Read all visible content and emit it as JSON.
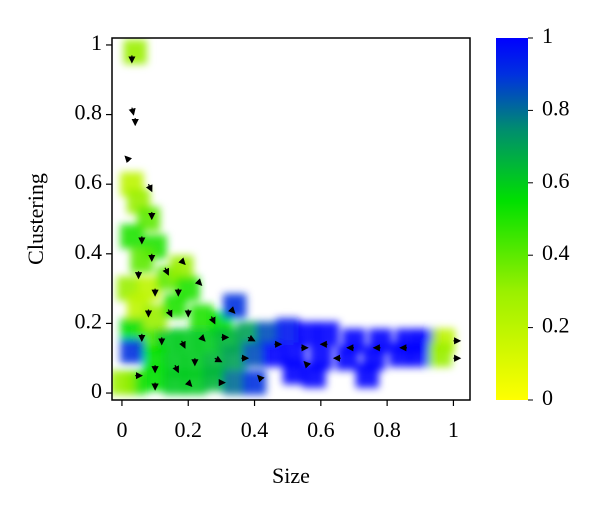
{
  "chart_data": {
    "type": "heatmap-quiver",
    "x_label": "Size",
    "y_label": "Clustering",
    "xlim": [
      -0.03,
      1.05
    ],
    "ylim": [
      -0.02,
      1.02
    ],
    "xticks": [
      0,
      0.2,
      0.4,
      0.6,
      0.8,
      1
    ],
    "yticks": [
      0,
      0.2,
      0.4,
      0.6,
      0.8,
      1
    ],
    "colorbar": {
      "lim": [
        0,
        1
      ],
      "ticks": [
        0,
        0.2,
        0.4,
        0.6,
        0.8,
        1
      ]
    },
    "colormap": [
      {
        "value": 0,
        "color": "#ffff00"
      },
      {
        "value": 0.3,
        "color": "#9af000"
      },
      {
        "value": 0.55,
        "color": "#00e000"
      },
      {
        "value": 0.75,
        "color": "#008c70"
      },
      {
        "value": 0.9,
        "color": "#0030e0"
      },
      {
        "value": 1,
        "color": "#0000ff"
      }
    ],
    "x": [
      0.04,
      0.03,
      0.05,
      0.08,
      0.03,
      0.1,
      0.06,
      0.02,
      0.08,
      0.14,
      0.18,
      0.2,
      0.05,
      0.1,
      0.16,
      0.24,
      0.3,
      0.34,
      0.03,
      0.08,
      0.14,
      0.2,
      0.26,
      0.32,
      0.38,
      0.44,
      0.5,
      0.56,
      0.62,
      0.7,
      0.78,
      0.86,
      0.92,
      0.97,
      0.03,
      0.1,
      0.16,
      0.22,
      0.28,
      0.34,
      0.4,
      0.46,
      0.52,
      0.6,
      0.68,
      0.76,
      0.84,
      0.9,
      0.96,
      0.04,
      0.1,
      0.16,
      0.22,
      0.28,
      0.34,
      0.4,
      0.52,
      0.58,
      0.74,
      0.0
    ],
    "y": [
      0.98,
      0.6,
      0.55,
      0.5,
      0.45,
      0.42,
      0.38,
      0.3,
      0.3,
      0.33,
      0.36,
      0.3,
      0.25,
      0.22,
      0.25,
      0.22,
      0.2,
      0.25,
      0.18,
      0.15,
      0.15,
      0.15,
      0.15,
      0.15,
      0.17,
      0.17,
      0.18,
      0.17,
      0.17,
      0.15,
      0.15,
      0.15,
      0.15,
      0.15,
      0.12,
      0.1,
      0.08,
      0.08,
      0.08,
      0.1,
      0.11,
      0.11,
      0.11,
      0.1,
      0.1,
      0.1,
      0.11,
      0.11,
      0.11,
      0.03,
      0.04,
      0.03,
      0.03,
      0.04,
      0.03,
      0.03,
      0.06,
      0.05,
      0.05,
      0.03
    ],
    "values": [
      0.3,
      0.2,
      0.3,
      0.4,
      0.5,
      0.5,
      0.4,
      0.3,
      0.2,
      0.4,
      0.3,
      0.5,
      0.2,
      0.3,
      0.5,
      0.5,
      0.55,
      0.9,
      0.55,
      0.45,
      0.6,
      0.6,
      0.6,
      0.65,
      0.7,
      0.85,
      0.95,
      1,
      1,
      1,
      1,
      1,
      1,
      0.2,
      0.9,
      0.55,
      0.6,
      0.6,
      0.65,
      0.7,
      0.85,
      1,
      1,
      1,
      1,
      1,
      1,
      1,
      0.3,
      0.5,
      0.55,
      0.6,
      0.6,
      0.65,
      0.8,
      0.9,
      1,
      1,
      1,
      0.3
    ],
    "quiver": {
      "x": [
        0.03,
        0.03,
        0.04,
        0.02,
        0.08,
        0.09,
        0.06,
        0.09,
        0.05,
        0.13,
        0.18,
        0.1,
        0.17,
        0.23,
        0.08,
        0.14,
        0.2,
        0.27,
        0.33,
        0.06,
        0.12,
        0.18,
        0.24,
        0.3,
        0.38,
        0.46,
        0.54,
        0.62,
        0.7,
        0.78,
        0.86,
        1.0,
        1.0,
        0.1,
        0.16,
        0.22,
        0.28,
        0.36,
        0.56,
        0.66,
        0.04,
        0.1,
        0.2,
        0.3,
        0.42
      ],
      "y": [
        0.97,
        0.82,
        0.79,
        0.67,
        0.6,
        0.52,
        0.45,
        0.4,
        0.35,
        0.36,
        0.38,
        0.3,
        0.3,
        0.32,
        0.24,
        0.24,
        0.24,
        0.22,
        0.24,
        0.17,
        0.16,
        0.15,
        0.16,
        0.16,
        0.16,
        0.14,
        0.13,
        0.14,
        0.13,
        0.13,
        0.13,
        0.15,
        0.1,
        0.08,
        0.08,
        0.1,
        0.1,
        0.1,
        0.08,
        0.1,
        0.05,
        0.03,
        0.03,
        0.03,
        0.04
      ],
      "u": [
        0,
        0.005,
        0,
        -0.01,
        0.01,
        0,
        0,
        0,
        0,
        0.01,
        0.01,
        0,
        0,
        0.01,
        0,
        0.01,
        0,
        0.01,
        0.01,
        0,
        0,
        0.01,
        0.01,
        0.02,
        0.02,
        0.02,
        0.02,
        -0.02,
        -0.02,
        -0.02,
        -0.02,
        0.02,
        0.02,
        0,
        0.01,
        0,
        0.02,
        0.02,
        -0.01,
        -0.02,
        0.02,
        0,
        0.01,
        0.01,
        -0.01
      ],
      "v": [
        -0.02,
        -0.02,
        -0.02,
        0.01,
        -0.02,
        -0.02,
        -0.02,
        -0.02,
        -0.02,
        -0.02,
        -0.01,
        -0.02,
        -0.02,
        -0.01,
        -0.02,
        -0.02,
        -0.02,
        -0.02,
        -0.01,
        -0.02,
        -0.02,
        -0.02,
        -0.01,
        0,
        -0.01,
        0,
        0,
        0,
        0,
        0,
        0,
        0,
        0,
        -0.02,
        -0.02,
        -0.02,
        -0.01,
        0,
        0.01,
        0,
        0,
        -0.02,
        -0.01,
        0,
        0.01
      ]
    }
  }
}
